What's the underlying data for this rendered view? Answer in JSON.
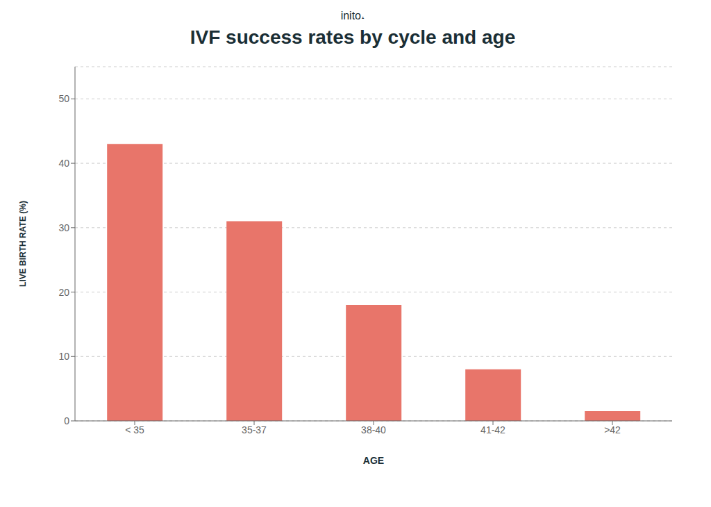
{
  "chart_data": {
    "type": "bar",
    "title": "IVF success rates by cycle and age",
    "subtitle": "inito˔",
    "xlabel": "AGE",
    "ylabel": "LIVE BIRTH RATE (%)",
    "categories": [
      "< 35",
      "35-37",
      "38-40",
      "41-42",
      ">42"
    ],
    "values": [
      43,
      31,
      18,
      8,
      1.5
    ],
    "color": "#E8756A",
    "ylim": [
      0,
      55
    ],
    "yticks": [
      0,
      10,
      20,
      30,
      40,
      50
    ],
    "grid": true
  }
}
